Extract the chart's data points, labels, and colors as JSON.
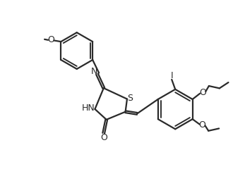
{
  "bg_color": "#ffffff",
  "line_color": "#2a2a2a",
  "line_width": 1.6,
  "font_size": 8.5,
  "figsize": [
    3.47,
    2.67
  ],
  "dpi": 100,
  "xlim": [
    0,
    10
  ],
  "ylim": [
    0,
    8
  ]
}
